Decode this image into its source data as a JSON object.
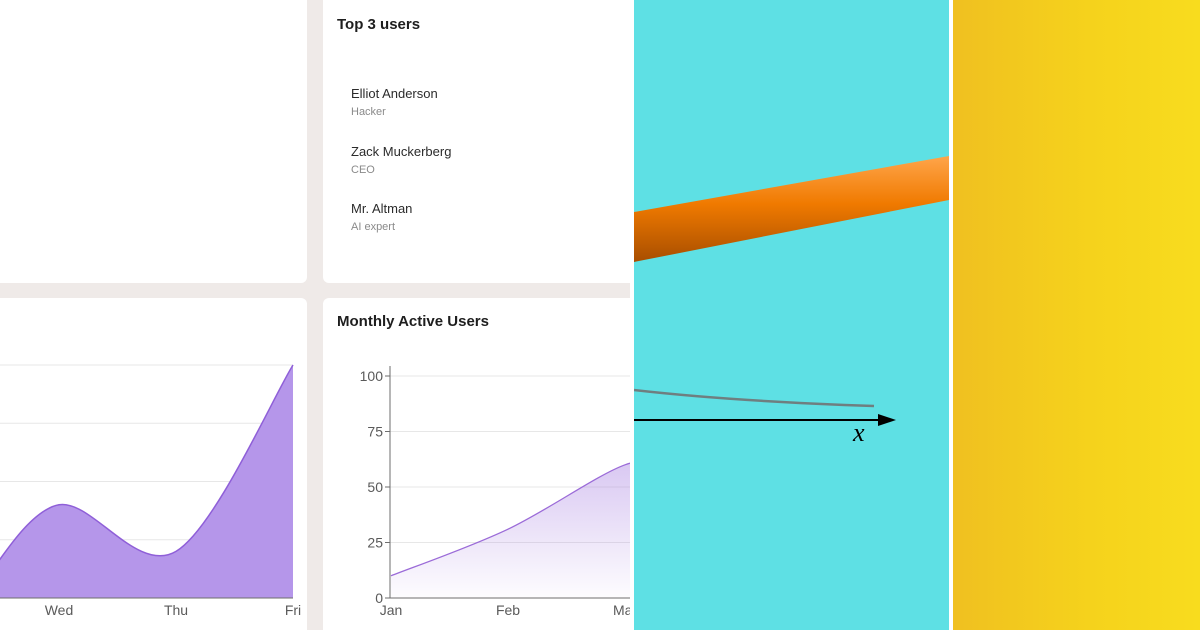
{
  "top_users": {
    "title": "Top 3 users",
    "users": [
      {
        "name": "Elliot Anderson",
        "role": "Hacker"
      },
      {
        "name": "Zack Muckerberg",
        "role": "CEO"
      },
      {
        "name": "Mr. Altman",
        "role": "AI expert"
      }
    ]
  },
  "weekly_chart": {
    "chart_data": {
      "type": "area",
      "categories": [
        "Wed",
        "Thu",
        "Fri"
      ],
      "values": [
        40,
        20,
        100
      ],
      "color": "#b596ea",
      "stroke": "#8f5fd8"
    }
  },
  "monthly_chart": {
    "title": "Monthly Active Users",
    "chart_data": {
      "type": "area",
      "categories": [
        "Jan",
        "Feb",
        "Mar"
      ],
      "values": [
        10,
        31,
        60
      ],
      "yticks": [
        0,
        25,
        50,
        75,
        100
      ],
      "ylim": [
        0,
        100
      ],
      "color": "#a47be0",
      "stroke": "#9b6bd8"
    }
  },
  "math_panel": {
    "axis_label": "x",
    "background": "#5ee0e4",
    "rod_color": "#f07a00"
  },
  "accent_panel": {
    "color_left": "#f0c020",
    "color_right": "#f8dc1e"
  }
}
